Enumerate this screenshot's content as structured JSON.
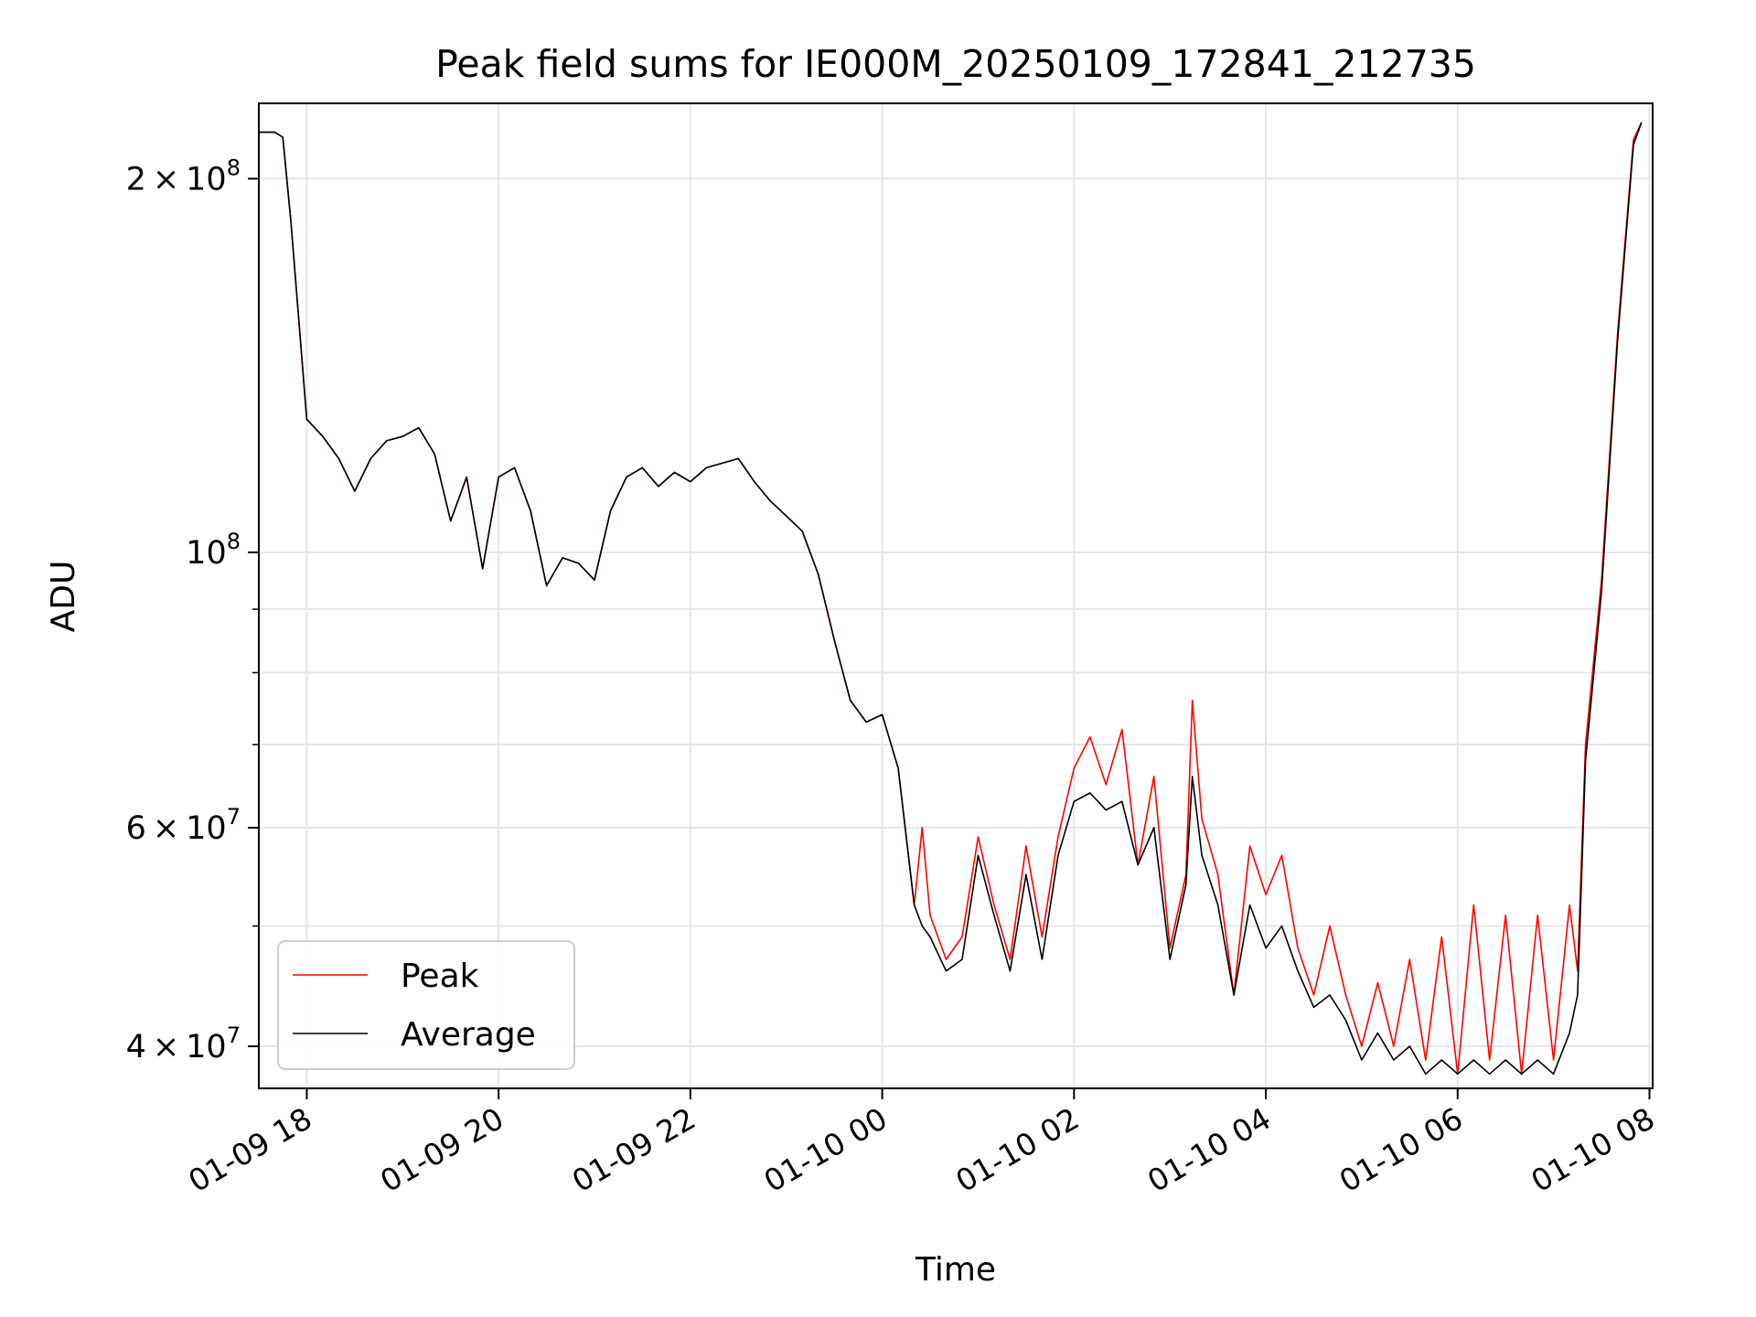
{
  "chart_data": {
    "type": "line",
    "title": "Peak field sums for IE000M_20250109_172841_212735",
    "xlabel": "Time",
    "ylabel": "ADU",
    "y_scale": "log",
    "grid": true,
    "legend_position": "lower-left",
    "xlim": [
      "2025-01-09 17:30",
      "2025-01-10 08:02"
    ],
    "ylim": [
      37000000,
      230000000
    ],
    "x_ticks": [
      "01-09 18",
      "01-09 20",
      "01-09 22",
      "01-10 00",
      "01-10 02",
      "01-10 04",
      "01-10 06",
      "01-10 08"
    ],
    "y_ticks": [
      {
        "value": 40000000,
        "mantissa": "4",
        "exponent": "7"
      },
      {
        "value": 60000000,
        "mantissa": "6",
        "exponent": "7"
      },
      {
        "value": 100000000,
        "mantissa": "",
        "exponent": "8"
      },
      {
        "value": 200000000,
        "mantissa": "2",
        "exponent": "8"
      }
    ],
    "series": [
      {
        "name": "Peak",
        "color": "#ff0000",
        "x": [
          "2025-01-09 17:30",
          "2025-01-09 17:40",
          "2025-01-09 17:45",
          "2025-01-09 17:50",
          "2025-01-09 18:00",
          "2025-01-09 18:10",
          "2025-01-09 18:20",
          "2025-01-09 18:30",
          "2025-01-09 18:40",
          "2025-01-09 18:50",
          "2025-01-09 19:00",
          "2025-01-09 19:10",
          "2025-01-09 19:20",
          "2025-01-09 19:30",
          "2025-01-09 19:40",
          "2025-01-09 19:50",
          "2025-01-09 20:00",
          "2025-01-09 20:10",
          "2025-01-09 20:20",
          "2025-01-09 20:30",
          "2025-01-09 20:40",
          "2025-01-09 20:50",
          "2025-01-09 21:00",
          "2025-01-09 21:10",
          "2025-01-09 21:20",
          "2025-01-09 21:30",
          "2025-01-09 21:40",
          "2025-01-09 21:50",
          "2025-01-09 22:00",
          "2025-01-09 22:10",
          "2025-01-09 22:20",
          "2025-01-09 22:30",
          "2025-01-09 22:40",
          "2025-01-09 22:50",
          "2025-01-09 23:00",
          "2025-01-09 23:10",
          "2025-01-09 23:20",
          "2025-01-09 23:30",
          "2025-01-09 23:40",
          "2025-01-09 23:50",
          "2025-01-10 00:00",
          "2025-01-10 00:10",
          "2025-01-10 00:20",
          "2025-01-10 00:25",
          "2025-01-10 00:30",
          "2025-01-10 00:40",
          "2025-01-10 00:50",
          "2025-01-10 01:00",
          "2025-01-10 01:10",
          "2025-01-10 01:20",
          "2025-01-10 01:30",
          "2025-01-10 01:40",
          "2025-01-10 01:50",
          "2025-01-10 02:00",
          "2025-01-10 02:10",
          "2025-01-10 02:20",
          "2025-01-10 02:30",
          "2025-01-10 02:40",
          "2025-01-10 02:50",
          "2025-01-10 03:00",
          "2025-01-10 03:10",
          "2025-01-10 03:14",
          "2025-01-10 03:20",
          "2025-01-10 03:30",
          "2025-01-10 03:40",
          "2025-01-10 03:50",
          "2025-01-10 04:00",
          "2025-01-10 04:10",
          "2025-01-10 04:20",
          "2025-01-10 04:30",
          "2025-01-10 04:40",
          "2025-01-10 04:50",
          "2025-01-10 05:00",
          "2025-01-10 05:10",
          "2025-01-10 05:20",
          "2025-01-10 05:30",
          "2025-01-10 05:40",
          "2025-01-10 05:50",
          "2025-01-10 06:00",
          "2025-01-10 06:10",
          "2025-01-10 06:20",
          "2025-01-10 06:30",
          "2025-01-10 06:40",
          "2025-01-10 06:50",
          "2025-01-10 07:00",
          "2025-01-10 07:10",
          "2025-01-10 07:15",
          "2025-01-10 07:20",
          "2025-01-10 07:30",
          "2025-01-10 07:40",
          "2025-01-10 07:50",
          "2025-01-10 07:55"
        ],
        "y": [
          218000000,
          218000000,
          216000000,
          185000000,
          128000000,
          124000000,
          119000000,
          112000000,
          119000000,
          123000000,
          124000000,
          126000000,
          120000000,
          106000000,
          115000000,
          97000000,
          115000000,
          117000000,
          108000000,
          94000000,
          99000000,
          98000000,
          95000000,
          108000000,
          115000000,
          117000000,
          113000000,
          116000000,
          114000000,
          117000000,
          118000000,
          119000000,
          114000000,
          110000000,
          107000000,
          104000000,
          96000000,
          85000000,
          76000000,
          73000000,
          74000000,
          67000000,
          52000000,
          60000000,
          51000000,
          47000000,
          49000000,
          59000000,
          52000000,
          47000000,
          58000000,
          49000000,
          59000000,
          67000000,
          71000000,
          65000000,
          72000000,
          56000000,
          66000000,
          48000000,
          55000000,
          76000000,
          61000000,
          55000000,
          44000000,
          58000000,
          53000000,
          57000000,
          48000000,
          44000000,
          50000000,
          44000000,
          40000000,
          45000000,
          40000000,
          47000000,
          39000000,
          49000000,
          38000000,
          52000000,
          39000000,
          51000000,
          38000000,
          51000000,
          39000000,
          52000000,
          46000000,
          70000000,
          95000000,
          150000000,
          215000000,
          222000000
        ]
      },
      {
        "name": "Average",
        "color": "#000000",
        "x": [
          "2025-01-09 17:30",
          "2025-01-09 17:40",
          "2025-01-09 17:45",
          "2025-01-09 17:50",
          "2025-01-09 18:00",
          "2025-01-09 18:10",
          "2025-01-09 18:20",
          "2025-01-09 18:30",
          "2025-01-09 18:40",
          "2025-01-09 18:50",
          "2025-01-09 19:00",
          "2025-01-09 19:10",
          "2025-01-09 19:20",
          "2025-01-09 19:30",
          "2025-01-09 19:40",
          "2025-01-09 19:50",
          "2025-01-09 20:00",
          "2025-01-09 20:10",
          "2025-01-09 20:20",
          "2025-01-09 20:30",
          "2025-01-09 20:40",
          "2025-01-09 20:50",
          "2025-01-09 21:00",
          "2025-01-09 21:10",
          "2025-01-09 21:20",
          "2025-01-09 21:30",
          "2025-01-09 21:40",
          "2025-01-09 21:50",
          "2025-01-09 22:00",
          "2025-01-09 22:10",
          "2025-01-09 22:20",
          "2025-01-09 22:30",
          "2025-01-09 22:40",
          "2025-01-09 22:50",
          "2025-01-09 23:00",
          "2025-01-09 23:10",
          "2025-01-09 23:20",
          "2025-01-09 23:30",
          "2025-01-09 23:40",
          "2025-01-09 23:50",
          "2025-01-10 00:00",
          "2025-01-10 00:10",
          "2025-01-10 00:20",
          "2025-01-10 00:25",
          "2025-01-10 00:30",
          "2025-01-10 00:40",
          "2025-01-10 00:50",
          "2025-01-10 01:00",
          "2025-01-10 01:10",
          "2025-01-10 01:20",
          "2025-01-10 01:30",
          "2025-01-10 01:40",
          "2025-01-10 01:50",
          "2025-01-10 02:00",
          "2025-01-10 02:10",
          "2025-01-10 02:20",
          "2025-01-10 02:30",
          "2025-01-10 02:40",
          "2025-01-10 02:50",
          "2025-01-10 03:00",
          "2025-01-10 03:10",
          "2025-01-10 03:14",
          "2025-01-10 03:20",
          "2025-01-10 03:30",
          "2025-01-10 03:40",
          "2025-01-10 03:50",
          "2025-01-10 04:00",
          "2025-01-10 04:10",
          "2025-01-10 04:20",
          "2025-01-10 04:30",
          "2025-01-10 04:40",
          "2025-01-10 04:50",
          "2025-01-10 05:00",
          "2025-01-10 05:10",
          "2025-01-10 05:20",
          "2025-01-10 05:30",
          "2025-01-10 05:40",
          "2025-01-10 05:50",
          "2025-01-10 06:00",
          "2025-01-10 06:10",
          "2025-01-10 06:20",
          "2025-01-10 06:30",
          "2025-01-10 06:40",
          "2025-01-10 06:50",
          "2025-01-10 07:00",
          "2025-01-10 07:10",
          "2025-01-10 07:15",
          "2025-01-10 07:20",
          "2025-01-10 07:30",
          "2025-01-10 07:40",
          "2025-01-10 07:50",
          "2025-01-10 07:55"
        ],
        "y": [
          218000000,
          218000000,
          216000000,
          185000000,
          128000000,
          124000000,
          119000000,
          112000000,
          119000000,
          123000000,
          124000000,
          126000000,
          120000000,
          106000000,
          115000000,
          97000000,
          115000000,
          117000000,
          108000000,
          94000000,
          99000000,
          98000000,
          95000000,
          108000000,
          115000000,
          117000000,
          113000000,
          116000000,
          114000000,
          117000000,
          118000000,
          119000000,
          114000000,
          110000000,
          107000000,
          104000000,
          96000000,
          85000000,
          76000000,
          73000000,
          74000000,
          67000000,
          52000000,
          50000000,
          49000000,
          46000000,
          47000000,
          57000000,
          51000000,
          46000000,
          55000000,
          47000000,
          57000000,
          63000000,
          64000000,
          62000000,
          63000000,
          56000000,
          60000000,
          47000000,
          54000000,
          66000000,
          57000000,
          52000000,
          44000000,
          52000000,
          48000000,
          50000000,
          46000000,
          43000000,
          44000000,
          42000000,
          39000000,
          41000000,
          39000000,
          40000000,
          38000000,
          39000000,
          38000000,
          39000000,
          38000000,
          39000000,
          38000000,
          39000000,
          38000000,
          41000000,
          44000000,
          68000000,
          93000000,
          148000000,
          213000000,
          222000000
        ]
      }
    ]
  }
}
